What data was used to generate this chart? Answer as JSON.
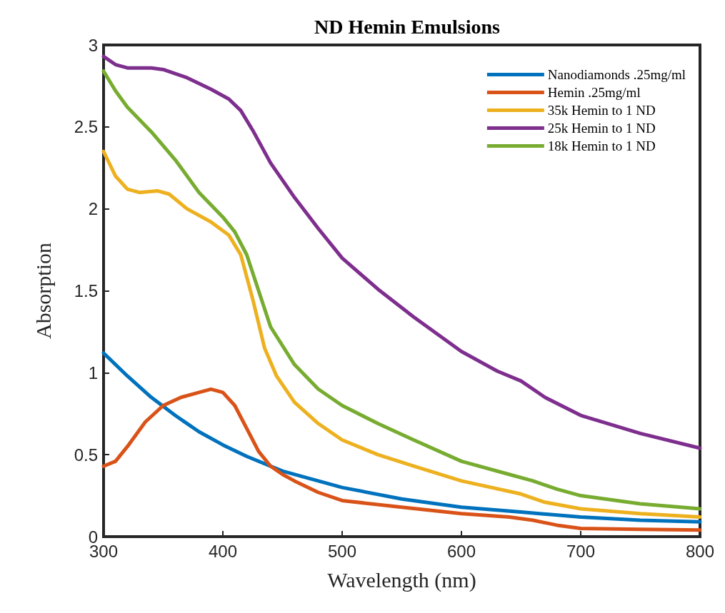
{
  "chart_data": {
    "type": "line",
    "title": "ND Hemin Emulsions",
    "xlabel": "Wavelength (nm)",
    "ylabel": "Absorption",
    "xlim": [
      300,
      800
    ],
    "xticks": [
      300,
      400,
      500,
      600,
      700,
      800
    ],
    "ylim": [
      0,
      3
    ],
    "yticks": [
      0,
      0.5,
      1,
      1.5,
      2,
      2.5,
      3
    ],
    "grid": false,
    "legend": "top right",
    "marker": "none",
    "line_style": "solid",
    "series": [
      {
        "name": "Nanodiamonds .25mg/ml",
        "color": "#0072bd",
        "x": [
          300,
          320,
          340,
          360,
          380,
          400,
          420,
          450,
          500,
          550,
          600,
          650,
          700,
          750,
          800
        ],
        "values": [
          1.12,
          0.98,
          0.85,
          0.74,
          0.64,
          0.56,
          0.49,
          0.4,
          0.3,
          0.23,
          0.18,
          0.15,
          0.12,
          0.1,
          0.09
        ]
      },
      {
        "name": "Hemin .25mg/ml",
        "color": "#d95319",
        "x": [
          300,
          310,
          320,
          335,
          350,
          365,
          380,
          390,
          400,
          410,
          420,
          430,
          440,
          450,
          460,
          480,
          500,
          550,
          600,
          640,
          660,
          680,
          700,
          750,
          800
        ],
        "values": [
          0.43,
          0.46,
          0.55,
          0.7,
          0.8,
          0.85,
          0.88,
          0.9,
          0.88,
          0.8,
          0.66,
          0.52,
          0.43,
          0.38,
          0.34,
          0.27,
          0.22,
          0.18,
          0.14,
          0.12,
          0.1,
          0.07,
          0.05,
          0.045,
          0.04
        ]
      },
      {
        "name": "35k Hemin to 1 ND",
        "color": "#edb120",
        "x": [
          300,
          310,
          320,
          330,
          345,
          355,
          370,
          390,
          405,
          415,
          425,
          435,
          445,
          460,
          480,
          500,
          530,
          560,
          600,
          650,
          670,
          700,
          750,
          800
        ],
        "values": [
          2.35,
          2.2,
          2.12,
          2.1,
          2.11,
          2.09,
          2.0,
          1.92,
          1.84,
          1.72,
          1.45,
          1.15,
          0.98,
          0.82,
          0.69,
          0.59,
          0.5,
          0.43,
          0.34,
          0.26,
          0.21,
          0.17,
          0.14,
          0.12
        ]
      },
      {
        "name": "25k Hemin to 1 ND",
        "color": "#7e2f8e",
        "x": [
          300,
          310,
          320,
          340,
          350,
          370,
          390,
          405,
          415,
          425,
          440,
          460,
          480,
          500,
          530,
          560,
          600,
          630,
          650,
          670,
          700,
          750,
          800
        ],
        "values": [
          2.93,
          2.88,
          2.86,
          2.86,
          2.85,
          2.8,
          2.73,
          2.67,
          2.6,
          2.48,
          2.28,
          2.07,
          1.88,
          1.7,
          1.51,
          1.34,
          1.13,
          1.01,
          0.95,
          0.85,
          0.74,
          0.63,
          0.54
        ]
      },
      {
        "name": "18k Hemin to 1 ND",
        "color": "#77ac30",
        "x": [
          300,
          310,
          320,
          340,
          360,
          380,
          400,
          410,
          420,
          430,
          440,
          460,
          480,
          500,
          530,
          560,
          600,
          640,
          660,
          680,
          700,
          750,
          800
        ],
        "values": [
          2.84,
          2.72,
          2.62,
          2.47,
          2.3,
          2.1,
          1.95,
          1.86,
          1.72,
          1.5,
          1.28,
          1.05,
          0.9,
          0.8,
          0.69,
          0.59,
          0.46,
          0.38,
          0.34,
          0.29,
          0.25,
          0.2,
          0.17
        ]
      }
    ]
  }
}
